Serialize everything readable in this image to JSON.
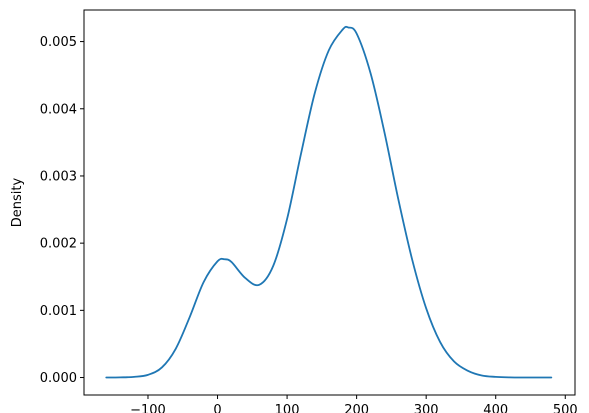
{
  "chart_data": {
    "type": "line",
    "title": "",
    "xlabel": "",
    "ylabel": "Density",
    "xlim": [
      -192,
      514
    ],
    "ylim": [
      -0.00026,
      0.00547
    ],
    "xticks": [
      -100,
      0,
      100,
      200,
      300,
      400,
      500
    ],
    "xtick_labels": [
      "−100",
      "0",
      "100",
      "200",
      "300",
      "400",
      "500"
    ],
    "yticks": [
      0.0,
      0.001,
      0.002,
      0.003,
      0.004,
      0.005
    ],
    "ytick_labels": [
      "0.000",
      "0.001",
      "0.002",
      "0.003",
      "0.004",
      "0.005"
    ],
    "grid": false,
    "legend": "none",
    "series": [
      {
        "color": "#1f77b4",
        "x": [
          -160,
          -140,
          -120,
          -100,
          -80,
          -60,
          -40,
          -20,
          0,
          10,
          20,
          40,
          60,
          80,
          100,
          120,
          140,
          160,
          180,
          188,
          200,
          220,
          240,
          260,
          280,
          300,
          320,
          340,
          360,
          380,
          400,
          420,
          440,
          460,
          480
        ],
        "y": [
          0.0,
          2e-06,
          1e-05,
          4e-05,
          0.00015,
          0.00043,
          0.0009,
          0.00142,
          0.00173,
          0.00176,
          0.00172,
          0.00148,
          0.00138,
          0.00166,
          0.00236,
          0.00333,
          0.00424,
          0.00487,
          0.00518,
          0.00521,
          0.00512,
          0.00453,
          0.00365,
          0.00265,
          0.00175,
          0.00103,
          0.00053,
          0.00024,
          0.0001,
          3e-05,
          1e-05,
          2e-06,
          0.0,
          0.0,
          0.0
        ]
      }
    ]
  }
}
